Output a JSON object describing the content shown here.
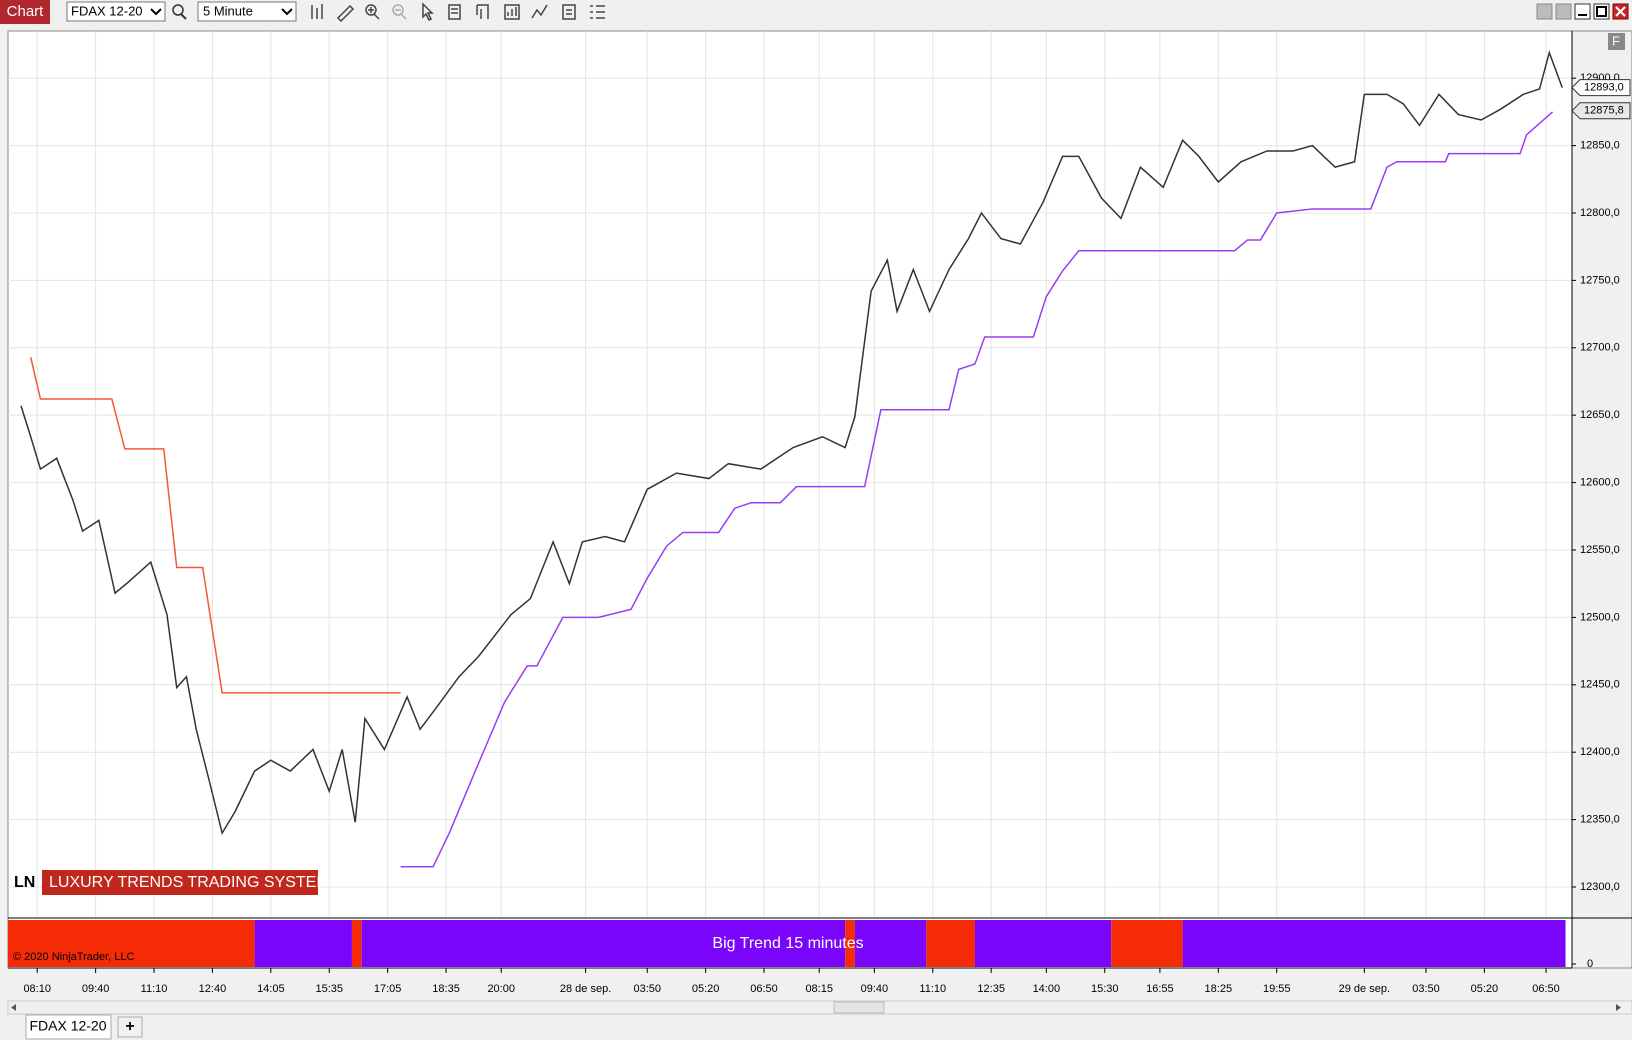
{
  "toolbar": {
    "title": "Chart",
    "instrument": "FDAX 12-20",
    "interval": "5 Minute"
  },
  "chart_data": {
    "type": "line",
    "xlim": [
      -3,
      479
    ],
    "ylim": [
      12277,
      12935
    ],
    "xticks": [
      {
        "value": 6,
        "label": "08:10"
      },
      {
        "value": 24,
        "label": "09:40"
      },
      {
        "value": 42,
        "label": "11:10"
      },
      {
        "value": 60,
        "label": "12:40"
      },
      {
        "value": 78,
        "label": "14:05"
      },
      {
        "value": 96,
        "label": "15:35"
      },
      {
        "value": 114,
        "label": "17:05"
      },
      {
        "value": 132,
        "label": "18:35"
      },
      {
        "value": 149,
        "label": "20:00"
      },
      {
        "value": 175,
        "label": "28 de sep."
      },
      {
        "value": 194,
        "label": "03:50"
      },
      {
        "value": 212,
        "label": "05:20"
      },
      {
        "value": 230,
        "label": "06:50"
      },
      {
        "value": 247,
        "label": "08:15"
      },
      {
        "value": 264,
        "label": "09:40"
      },
      {
        "value": 282,
        "label": "11:10"
      },
      {
        "value": 300,
        "label": "12:35"
      },
      {
        "value": 317,
        "label": "14:00"
      },
      {
        "value": 335,
        "label": "15:30"
      },
      {
        "value": 352,
        "label": "16:55"
      },
      {
        "value": 370,
        "label": "18:25"
      },
      {
        "value": 388,
        "label": "19:55"
      },
      {
        "value": 415,
        "label": "29 de sep."
      },
      {
        "value": 434,
        "label": "03:50"
      },
      {
        "value": 452,
        "label": "05:20"
      },
      {
        "value": 471,
        "label": "06:50"
      }
    ],
    "yticks": [
      {
        "value": 12300,
        "label": "12300,0"
      },
      {
        "value": 12350,
        "label": "12350,0"
      },
      {
        "value": 12400,
        "label": "12400,0"
      },
      {
        "value": 12450,
        "label": "12450,0"
      },
      {
        "value": 12500,
        "label": "12500,0"
      },
      {
        "value": 12550,
        "label": "12550,0"
      },
      {
        "value": 12600,
        "label": "12600,0"
      },
      {
        "value": 12650,
        "label": "12650,0"
      },
      {
        "value": 12700,
        "label": "12700,0"
      },
      {
        "value": 12750,
        "label": "12750,0"
      },
      {
        "value": 12800,
        "label": "12800,0"
      },
      {
        "value": 12850,
        "label": "12850,0"
      },
      {
        "value": 12900,
        "label": "12900,0"
      }
    ],
    "grid": true,
    "series": [
      {
        "color": "#333333",
        "x": [
          1,
          4,
          7,
          12,
          17,
          20,
          25,
          30,
          34,
          41,
          46,
          49,
          52,
          55,
          59,
          63,
          67,
          73,
          78,
          84,
          91,
          96,
          100,
          104,
          107,
          113,
          120,
          124,
          129,
          136,
          142,
          152,
          158,
          165,
          170,
          174,
          181,
          187,
          194,
          203,
          213,
          219,
          229,
          239,
          248,
          255,
          258,
          263,
          268,
          271,
          276,
          281,
          287,
          293,
          297,
          303,
          309,
          316,
          322,
          327,
          334,
          340,
          346,
          353,
          359,
          364,
          370,
          377,
          385,
          393,
          399,
          406,
          412,
          415,
          422,
          427,
          432,
          438,
          444,
          451,
          457,
          464,
          469,
          472,
          476
        ],
        "values": [
          12657,
          12634,
          12610,
          12618,
          12587,
          12564,
          12572,
          12518,
          12526,
          12541,
          12502,
          12448,
          12456,
          12417,
          12379,
          12340,
          12356,
          12386,
          12394,
          12386,
          12402,
          12371,
          12402,
          12348,
          12425,
          12402,
          12441,
          12417,
          12433,
          12456,
          12471,
          12502,
          12514,
          12556,
          12525,
          12556,
          12560,
          12556,
          12595,
          12607,
          12603,
          12614,
          12610,
          12626,
          12634,
          12626,
          12649,
          12742,
          12765,
          12727,
          12758,
          12727,
          12758,
          12781,
          12800,
          12781,
          12777,
          12808,
          12842,
          12842,
          12811,
          12796,
          12834,
          12819,
          12854,
          12842,
          12823,
          12838,
          12846,
          12846,
          12850,
          12834,
          12838,
          12888,
          12888,
          12881,
          12865,
          12888,
          12873,
          12869,
          12877,
          12888,
          12892,
          12919,
          12893
        ]
      },
      {
        "color": "#f2573a",
        "x": [
          4,
          7,
          29,
          33,
          45,
          49,
          57,
          63,
          118
        ],
        "values": [
          12693,
          12662,
          12662,
          12625,
          12625,
          12537,
          12537,
          12444,
          12444
        ]
      },
      {
        "color": "#9b3cf5",
        "x": [
          118,
          128,
          133,
          141,
          150,
          157,
          160,
          168,
          179,
          189,
          194,
          200,
          205,
          216,
          221,
          226,
          235,
          240,
          261,
          266,
          287,
          290,
          295,
          298,
          313,
          317,
          322,
          327,
          375,
          379,
          383,
          388,
          399,
          417,
          422,
          425,
          440,
          441,
          463,
          465,
          473
        ],
        "values": [
          12315,
          12315,
          12340,
          12386,
          12437,
          12464,
          12464,
          12500,
          12500,
          12506,
          12529,
          12553,
          12563,
          12563,
          12581,
          12585,
          12585,
          12597,
          12597,
          12654,
          12654,
          12684,
          12688,
          12708,
          12708,
          12738,
          12757,
          12772,
          12772,
          12780,
          12780,
          12800,
          12803,
          12803,
          12834,
          12838,
          12838,
          12844,
          12844,
          12858,
          12875
        ]
      }
    ],
    "price_tags": [
      {
        "value": 12893,
        "label": "12893,0",
        "color": "#ffffff"
      },
      {
        "value": 12875.8,
        "label": "12875,8",
        "color": "#e8e8e8"
      }
    ],
    "indicator": {
      "short_name": "LN",
      "name": "LUXURY TRENDS TRADING SYSTEM"
    },
    "copyright": "© 2020 NinjaTrader, LLC",
    "lower_panel": {
      "title": "Big Trend 15 minutes",
      "yticks": [
        0
      ],
      "bands": [
        {
          "from": -3,
          "to": 73,
          "color": "#f52b05"
        },
        {
          "from": 73,
          "to": 103,
          "color": "#7a05fb"
        },
        {
          "from": 103,
          "to": 106,
          "color": "#f52b05"
        },
        {
          "from": 106,
          "to": 255,
          "color": "#7a05fb"
        },
        {
          "from": 255,
          "to": 258,
          "color": "#f52b05"
        },
        {
          "from": 258,
          "to": 280,
          "color": "#7a05fb"
        },
        {
          "from": 280,
          "to": 295,
          "color": "#f52b05"
        },
        {
          "from": 295,
          "to": 337,
          "color": "#7a05fb"
        },
        {
          "from": 337,
          "to": 359,
          "color": "#f52b05"
        },
        {
          "from": 359,
          "to": 477,
          "color": "#7a05fb"
        }
      ]
    }
  },
  "panel_label": "F",
  "tabs": [
    "FDAX 12-20",
    "+"
  ]
}
